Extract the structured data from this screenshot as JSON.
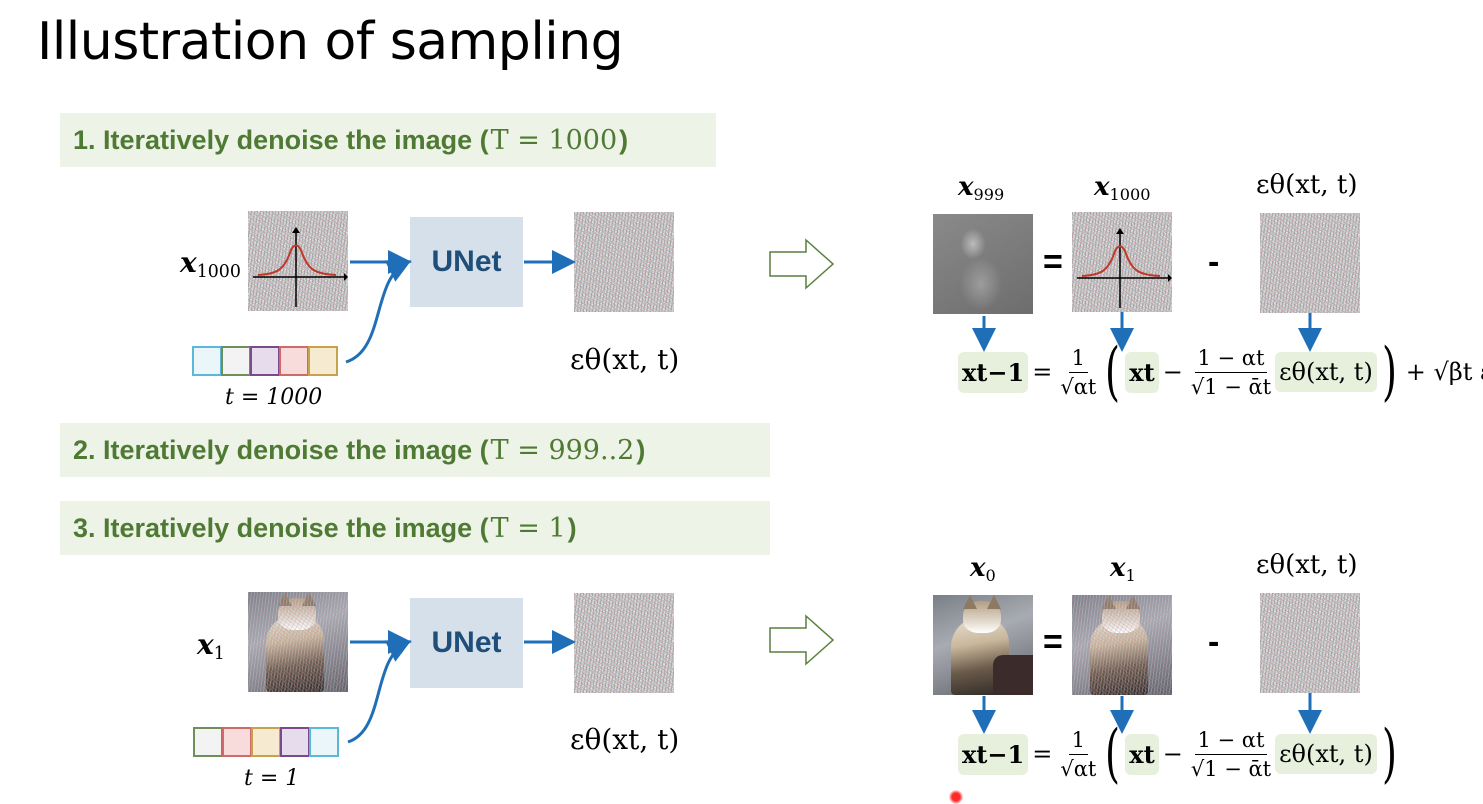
{
  "slide": {
    "title": "Illustration of sampling"
  },
  "steps": [
    {
      "label": "1. Iteratively denoise the image (",
      "math": "T = 1000",
      "close": ")"
    },
    {
      "label": "2. Iteratively denoise the image (",
      "math": "T = 999..2",
      "close": ")"
    },
    {
      "label": "3. Iteratively denoise the image (",
      "math": "T = 1",
      "close": ")"
    }
  ],
  "top_row": {
    "input_label": "x",
    "input_sub": "1000",
    "unet_label": "UNet",
    "t_label": "t = 1000",
    "output_label": "εθ(xt, t)",
    "eq_labels": {
      "lhs": "x",
      "lhs_sub": "999",
      "mid": "x",
      "mid_sub": "1000",
      "rhs": "εθ(xt, t)"
    },
    "ops": {
      "equals": "=",
      "minus": "-"
    },
    "t_vector_colors": [
      "#5bb8d6",
      "#6e8f5a",
      "#7a4a8c",
      "#d06a6a",
      "#c8a24a"
    ]
  },
  "bottom_row": {
    "input_label": "x",
    "input_sub": "1",
    "unet_label": "UNet",
    "t_label": "t = 1",
    "output_label": "εθ(xt, t)",
    "eq_labels": {
      "lhs": "x",
      "lhs_sub": "0",
      "mid": "x",
      "mid_sub": "1",
      "rhs": "εθ(xt, t)"
    },
    "ops": {
      "equals": "=",
      "minus": "-"
    },
    "t_vector_colors": [
      "#6e8f5a",
      "#d06a6a",
      "#c8a24a",
      "#7a4a8c",
      "#5bb8d6"
    ]
  },
  "formula": {
    "lhs": "xt−1",
    "eq": "=",
    "frac1_num": "1",
    "frac1_den": "√αt",
    "xt": "xt",
    "minus": "−",
    "frac2_num": "1 − αt",
    "frac2_den": "√1 − ᾱt",
    "eps": "εθ(xt, t)",
    "noise_term": "+ √βt ε"
  },
  "colors": {
    "banner_bg": "#eef3e8",
    "banner_text": "#4f7a34",
    "unet_bg": "#d6e0ea",
    "unet_text": "#1f4e79",
    "arrow_blue": "#1f6fb8",
    "highlight": "#e6f0dd"
  }
}
